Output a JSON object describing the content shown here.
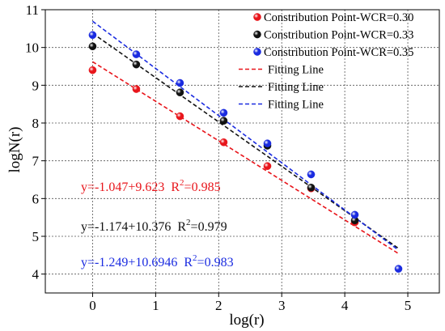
{
  "chart_data": {
    "type": "scatter",
    "xlabel": "log(r)",
    "ylabel": "logN(r)",
    "xlim": [
      -0.75,
      5.5
    ],
    "ylim": [
      3.5,
      11
    ],
    "xticks": [
      0,
      1,
      2,
      3,
      4,
      5
    ],
    "yticks": [
      4,
      5,
      6,
      7,
      8,
      9,
      10,
      11
    ],
    "grid": "dashed",
    "legend_position": "top-right",
    "series": [
      {
        "name": "Constribution Point-WCR=0.30",
        "color": "#e8151b",
        "x": [
          0,
          0.693,
          1.386,
          2.079,
          2.773,
          3.466,
          4.159
        ],
        "y": [
          9.4,
          8.9,
          8.18,
          7.49,
          6.86,
          6.27,
          5.37
        ],
        "fit": {
          "legend": "Fitting Line",
          "slope": -1.047,
          "intercept": 9.623,
          "x_range": [
            0,
            4.85
          ]
        },
        "equation": {
          "eq": "y=-1.047+9.623",
          "r2_label": "R",
          "r2_sup": "2",
          "r2_value": "=0.985"
        }
      },
      {
        "name": "Constribution Point-WCR=0.33",
        "color": "#111111",
        "x": [
          0,
          0.693,
          1.386,
          2.079,
          2.773,
          3.466,
          4.159
        ],
        "y": [
          10.03,
          9.55,
          8.81,
          8.06,
          7.4,
          6.29,
          5.42
        ],
        "fit": {
          "legend": "Fitting Line",
          "slope": -1.174,
          "intercept": 10.376,
          "x_range": [
            0,
            4.85
          ]
        },
        "equation": {
          "eq": "y=-1.174+10.376",
          "r2_label": "R",
          "r2_sup": "2",
          "r2_value": "=0.979"
        }
      },
      {
        "name": "Constribution Point-WCR=0.35",
        "color": "#1a2be0",
        "x": [
          0,
          0.693,
          1.386,
          2.079,
          2.773,
          3.466,
          4.159,
          4.852
        ],
        "y": [
          10.33,
          9.82,
          9.06,
          8.27,
          7.46,
          6.64,
          5.57,
          4.14
        ],
        "fit": {
          "legend": "Fitting Line",
          "slope": -1.249,
          "intercept": 10.6946,
          "x_range": [
            0,
            4.85
          ]
        },
        "equation": {
          "eq": "y=-1.249+10.6946",
          "r2_label": "R",
          "r2_sup": "2",
          "r2_value": "=0.983"
        }
      }
    ]
  }
}
